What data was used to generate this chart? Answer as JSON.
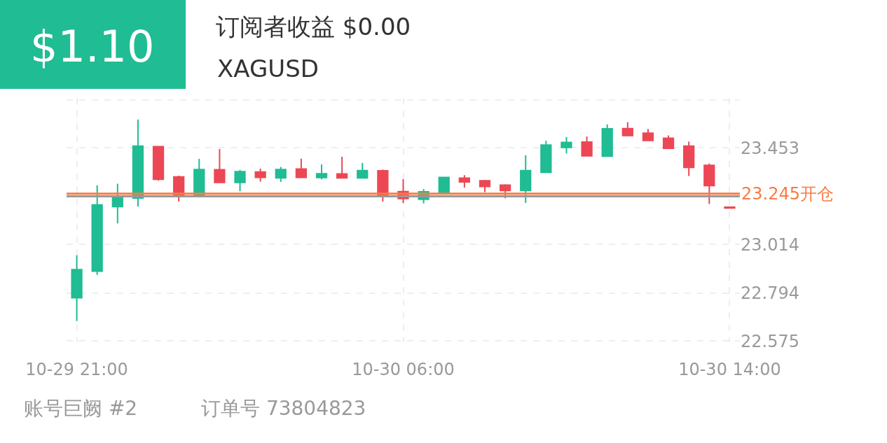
{
  "chart_data": {
    "type": "candlestick",
    "title": "订阅者收益 $0.00",
    "subtitle": "XAGUSD",
    "annotations": [
      "$1.10",
      "账号巨阙 #2",
      "订单号 73804823"
    ],
    "categories": [
      "10-29 21:00",
      null,
      null,
      null,
      null,
      null,
      null,
      null,
      null,
      null,
      null,
      null,
      null,
      null,
      null,
      null,
      "10-30 06:00",
      null,
      null,
      null,
      null,
      null,
      null,
      null,
      null,
      null,
      null,
      null,
      null,
      null,
      null,
      null,
      "10-30 14:00"
    ],
    "ohlc": [
      [
        22.772,
        22.965,
        22.666,
        22.9
      ],
      [
        22.893,
        23.283,
        22.876,
        23.194
      ],
      [
        23.186,
        23.29,
        23.11,
        23.231
      ],
      [
        23.225,
        23.582,
        23.186,
        23.461
      ],
      [
        23.459,
        23.461,
        23.305,
        23.31
      ],
      [
        23.321,
        23.327,
        23.209,
        23.241
      ],
      [
        23.241,
        23.403,
        23.241,
        23.355
      ],
      [
        23.354,
        23.448,
        23.296,
        23.296
      ],
      [
        23.296,
        23.353,
        23.256,
        23.345
      ],
      [
        23.344,
        23.359,
        23.3,
        23.319
      ],
      [
        23.317,
        23.367,
        23.298,
        23.355
      ],
      [
        23.357,
        23.404,
        23.316,
        23.319
      ],
      [
        23.318,
        23.378,
        23.31,
        23.336
      ],
      [
        23.335,
        23.413,
        23.317,
        23.317
      ],
      [
        23.317,
        23.385,
        23.317,
        23.35
      ],
      [
        23.349,
        23.355,
        23.209,
        23.241
      ],
      [
        23.255,
        23.311,
        23.203,
        23.223
      ],
      [
        23.22,
        23.266,
        23.201,
        23.254
      ],
      [
        23.248,
        23.322,
        23.241,
        23.319
      ],
      [
        23.316,
        23.329,
        23.273,
        23.298
      ],
      [
        23.304,
        23.308,
        23.252,
        23.278
      ],
      [
        23.284,
        23.288,
        23.224,
        23.259
      ],
      [
        23.259,
        23.419,
        23.203,
        23.35
      ],
      [
        23.342,
        23.485,
        23.342,
        23.466
      ],
      [
        23.455,
        23.503,
        23.428,
        23.478
      ],
      [
        23.48,
        23.505,
        23.417,
        23.417
      ],
      [
        23.415,
        23.56,
        23.415,
        23.54
      ],
      [
        23.541,
        23.57,
        23.509,
        23.509
      ],
      [
        23.52,
        23.539,
        23.487,
        23.487
      ],
      [
        23.497,
        23.51,
        23.451,
        23.451
      ],
      [
        23.461,
        23.482,
        23.325,
        23.364
      ],
      [
        23.374,
        23.382,
        23.198,
        23.282
      ],
      [
        23.184,
        23.184,
        23.18,
        23.18
      ]
    ],
    "colors": [
      "#20bc93",
      "#20bc93",
      "#20bc93",
      "#20bc93",
      "#ec4755",
      "#ec4755",
      "#20bc93",
      "#ec4755",
      "#20bc93",
      "#ec4755",
      "#20bc93",
      "#ec4755",
      "#20bc93",
      "#ec4755",
      "#20bc93",
      "#ec4755",
      "#ec4755",
      "#20bc93",
      "#20bc93",
      "#ec4755",
      "#ec4755",
      "#ec4755",
      "#20bc93",
      "#20bc93",
      "#20bc93",
      "#ec4755",
      "#20bc93",
      "#ec4755",
      "#ec4755",
      "#ec4755",
      "#ec4755",
      "#ec4755",
      "#ec4755"
    ],
    "ylim": [
      22.57,
      23.68
    ],
    "yticks": [
      22.575,
      22.794,
      23.014,
      23.453,
      {
        "value": 23.672,
        "label": null
      }
    ],
    "ref_lines": [
      {
        "axis": "y",
        "value": 23.233,
        "label": null,
        "color": "#999999"
      },
      {
        "axis": "y",
        "value": 23.245,
        "label": "23.245开仓",
        "color": "#f97b44"
      }
    ],
    "grid": true
  }
}
